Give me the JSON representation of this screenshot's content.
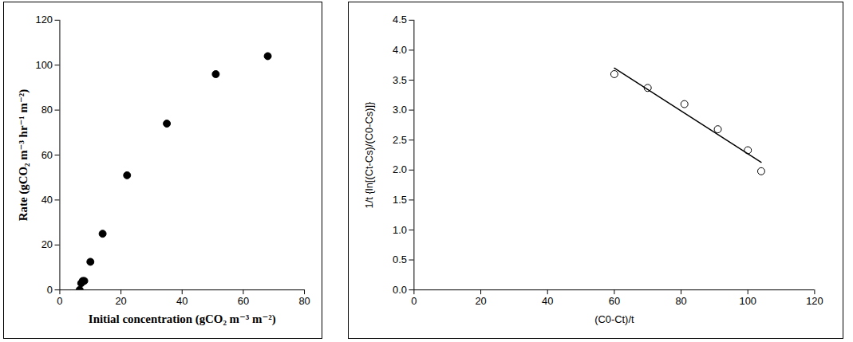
{
  "chart_data": [
    {
      "type": "scatter",
      "x_label": "Initial concentration (gCO₂ m⁻³ m⁻²)",
      "y_label": "Rate (gCO₂ m⁻³ hr⁻¹ m⁻²)",
      "xlim": [
        0,
        80
      ],
      "xticks": [
        0,
        20,
        40,
        60,
        80
      ],
      "ylim": [
        0,
        120
      ],
      "yticks": [
        0,
        20,
        40,
        60,
        80,
        100,
        120
      ],
      "series": [
        {
          "type": "scatter",
          "marker": "circle",
          "color": "#000000",
          "x": [
            6.5,
            7,
            7.5,
            8,
            10,
            14,
            22,
            35,
            51,
            68
          ],
          "values": [
            0,
            3,
            4,
            4,
            12.5,
            25,
            51,
            74,
            96,
            104
          ]
        }
      ]
    },
    {
      "type": "scatter",
      "x_label": "(C0-Ct)/t",
      "y_label": "1/t {ln[(Ct-Cs)/(C0-Cs)]}",
      "xlim": [
        0,
        120
      ],
      "xticks": [
        0,
        20,
        40,
        60,
        80,
        100,
        120
      ],
      "ylim": [
        0,
        4.5
      ],
      "yticks": [
        {
          "value": 0,
          "label": "0.0"
        },
        0.5,
        {
          "value": 1,
          "label": "1.0"
        },
        1.5,
        {
          "value": 2,
          "label": "2.0"
        },
        2.5,
        {
          "value": 3,
          "label": "3.0"
        },
        3.5,
        {
          "value": 4,
          "label": "4.0"
        },
        4.5
      ],
      "series": [
        {
          "type": "scatter",
          "marker": "circle-open",
          "color": "#000000",
          "x": [
            60,
            70,
            81,
            91,
            100,
            104
          ],
          "values": [
            3.6,
            3.37,
            3.1,
            2.68,
            2.33,
            1.98
          ]
        },
        {
          "type": "line",
          "color": "#000000",
          "x": [
            60,
            104
          ],
          "values": [
            3.7,
            2.13
          ]
        }
      ]
    }
  ]
}
